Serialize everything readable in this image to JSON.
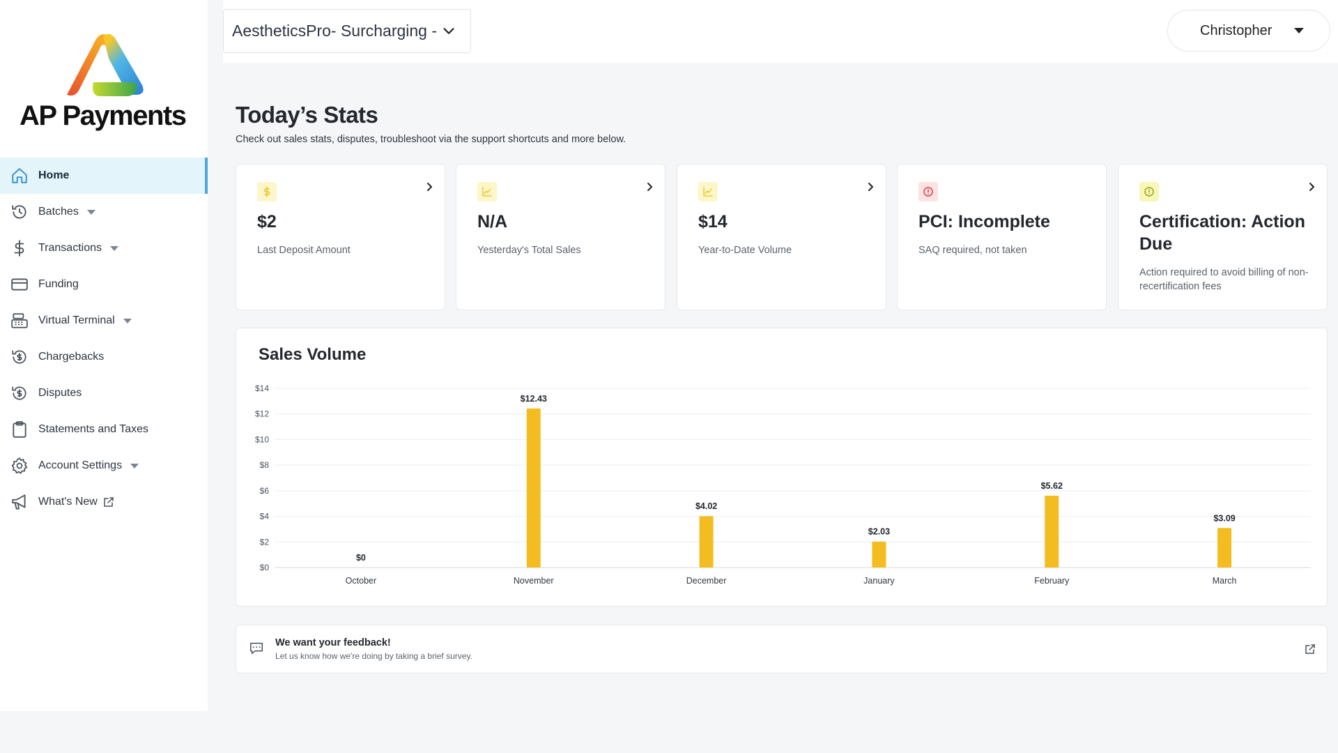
{
  "brand": {
    "name": "AP Payments",
    "colors": {
      "orange": "#f06a2a",
      "blue": "#3fa9e0",
      "green": "#8bc53f",
      "yellow": "#f5c21b"
    }
  },
  "sidebar": {
    "items": [
      {
        "label": "Home",
        "icon": "home-icon",
        "active": true
      },
      {
        "label": "Batches",
        "icon": "history-icon",
        "has_dropdown": true
      },
      {
        "label": "Transactions",
        "icon": "dollar-icon",
        "has_dropdown": true
      },
      {
        "label": "Funding",
        "icon": "wallet-icon"
      },
      {
        "label": "Virtual Terminal",
        "icon": "terminal-icon",
        "has_dropdown": true
      },
      {
        "label": "Chargebacks",
        "icon": "chargeback-icon"
      },
      {
        "label": "Disputes",
        "icon": "dispute-icon"
      },
      {
        "label": "Statements and Taxes",
        "icon": "clipboard-icon"
      },
      {
        "label": "Account Settings",
        "icon": "gear-icon",
        "has_dropdown": true
      },
      {
        "label": "What's New",
        "icon": "megaphone-icon",
        "external": true
      }
    ]
  },
  "topbar": {
    "merchant_select": "AestheticsPro- Surcharging -",
    "user_name": "Christopher"
  },
  "main": {
    "title": "Today’s Stats",
    "subtitle": "Check out sales stats, disputes, troubleshoot via the support shortcuts and more below."
  },
  "stats_cards": [
    {
      "value": "$2",
      "label": "Last Deposit Amount",
      "icon": "dollar-icon",
      "icon_bg": "#fdf6c9",
      "icon_color": "#e6c21b"
    },
    {
      "value": "N/A",
      "label": "Yesterday's Total Sales",
      "icon": "chart-icon",
      "icon_bg": "#fdf6c9",
      "icon_color": "#e6c21b"
    },
    {
      "value": "$14",
      "label": "Year-to-Date Volume",
      "icon": "chart-icon",
      "icon_bg": "#fdf6c9",
      "icon_color": "#e6c21b"
    },
    {
      "value": "PCI: Incomplete",
      "label": "SAQ required, not taken",
      "icon": "alert-icon",
      "icon_bg": "#fde2e2",
      "icon_color": "#d9363e"
    },
    {
      "value": "Certification: Action Due",
      "label": "Action required to avoid billing of non-recertification fees",
      "icon": "alert-icon",
      "icon_bg": "#f7f7b8",
      "icon_color": "#9a9a12"
    }
  ],
  "chart_data": {
    "type": "bar",
    "title": "Sales Volume",
    "categories": [
      "October",
      "November",
      "December",
      "January",
      "February",
      "March"
    ],
    "values": [
      0,
      12.43,
      4.02,
      2.03,
      5.62,
      3.09
    ],
    "data_labels": [
      "$0",
      "$12.43",
      "$4.02",
      "$2.03",
      "$5.62",
      "$3.09"
    ],
    "ylim": [
      0,
      14
    ],
    "y_ticks": [
      "$0",
      "$2",
      "$4",
      "$6",
      "$8",
      "$10",
      "$12",
      "$14"
    ],
    "grid": true,
    "bar_color": "#f3bd22",
    "xlabel": "",
    "ylabel": ""
  },
  "feedback": {
    "title": "We want your feedback!",
    "subtitle": "Let us know how we're doing by taking a brief survey."
  }
}
